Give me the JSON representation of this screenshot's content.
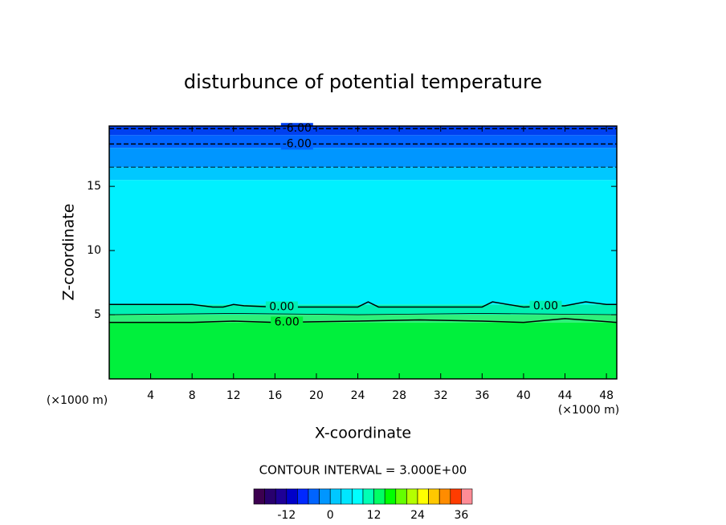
{
  "chart_data": {
    "type": "contour",
    "title": "disturbunce of potential temperature",
    "x_label": "X-coordinate",
    "y_label": "Z-coordinate",
    "x_unit_left": "(×1000 m)",
    "x_unit_right": "(×1000 m)",
    "contour_interval": "CONTOUR INTERVAL = 3.000E+00",
    "xlim": [
      0,
      49
    ],
    "ylim": [
      0,
      19.7
    ],
    "xticks": [
      4,
      8,
      12,
      16,
      20,
      24,
      28,
      32,
      36,
      40,
      44,
      48
    ],
    "yticks": [
      5,
      10,
      15
    ],
    "bands": [
      {
        "z": [
          0,
          4.4
        ],
        "color": "#00f03c"
      },
      {
        "z": [
          4.4,
          5.0
        ],
        "color": "#2ef07a"
      },
      {
        "z": [
          5.0,
          5.8
        ],
        "color": "#00f0b4"
      },
      {
        "z": [
          5.8,
          15.5
        ],
        "color": "#00f0ff"
      },
      {
        "z": [
          15.5,
          16.5
        ],
        "color": "#00c8ff"
      },
      {
        "z": [
          16.5,
          18.0
        ],
        "color": "#0096ff"
      },
      {
        "z": [
          18.0,
          19.0
        ],
        "color": "#0064ff"
      },
      {
        "z": [
          19.0,
          19.7
        ],
        "color": "#0040f0"
      }
    ],
    "contours": [
      {
        "label": "-6.00",
        "dashed": true,
        "x": [
          0,
          49
        ],
        "y": [
          19.5,
          19.5
        ]
      },
      {
        "label": "-6.00",
        "dashed": true,
        "x": [
          0,
          49
        ],
        "y": [
          18.3,
          18.3
        ]
      },
      {
        "dashed": true,
        "x": [
          0,
          49
        ],
        "y": [
          16.5,
          16.5
        ]
      },
      {
        "label": "0.00",
        "dashed": false,
        "x": [
          0,
          4,
          8,
          10,
          11,
          12,
          13,
          16,
          20,
          24,
          25,
          26,
          28,
          32,
          36,
          37,
          40,
          44,
          46,
          48,
          49
        ],
        "y": [
          5.8,
          5.8,
          5.8,
          5.6,
          5.6,
          5.8,
          5.7,
          5.6,
          5.6,
          5.6,
          6.0,
          5.6,
          5.6,
          5.6,
          5.6,
          6.0,
          5.6,
          5.7,
          6.0,
          5.8,
          5.8
        ]
      },
      {
        "dashed": false,
        "x": [
          0,
          12,
          24,
          36,
          49
        ],
        "y": [
          5.0,
          5.1,
          5.0,
          5.1,
          5.0
        ]
      },
      {
        "label": "6.00",
        "dashed": false,
        "x": [
          0,
          8,
          12,
          16,
          24,
          30,
          36,
          40,
          44,
          49
        ],
        "y": [
          4.4,
          4.4,
          4.5,
          4.4,
          4.5,
          4.6,
          4.5,
          4.4,
          4.7,
          4.4
        ]
      }
    ],
    "colorbar": {
      "clim": [
        -21,
        39
      ],
      "ticks": [
        -12,
        0,
        12,
        24,
        36
      ],
      "colors": [
        "#3c0050",
        "#28006e",
        "#1e0096",
        "#0000c8",
        "#0028ff",
        "#0064ff",
        "#0096ff",
        "#00c8ff",
        "#00e6ff",
        "#00ffff",
        "#00ffb4",
        "#00ff64",
        "#00ff00",
        "#64ff00",
        "#b4ff00",
        "#ffff00",
        "#ffc800",
        "#ff8c00",
        "#ff3c00",
        "#ff8c96"
      ]
    }
  }
}
